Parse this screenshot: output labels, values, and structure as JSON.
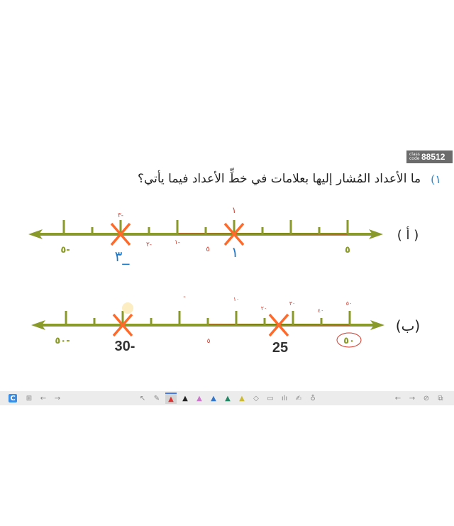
{
  "badge": {
    "label": "class code",
    "code": "88512"
  },
  "question": {
    "number": "١)",
    "text": "ما الأعداد المُشار إليها بعلامات في خطِّ الأعداد فيما يأتي؟"
  },
  "line_a": {
    "label": "( أ )",
    "printed_left": "٥-",
    "printed_right": "٥",
    "answer_x": "٣_",
    "answer_mark": "١",
    "annotations": {
      "above_x": "٣-",
      "n2": "٢-",
      "n1": "١-",
      "zero": "٥",
      "above_one": "١"
    }
  },
  "line_b": {
    "label": "(ب)",
    "printed_left": "٥٠-",
    "answer_x": "30-",
    "answer_mark": "25",
    "printed_right": "٥٠",
    "annotations": {
      "zero": "٥",
      "t10": "١٠",
      "t20": "٢٠",
      "t30": "٣٠",
      "t40": "٤٠",
      "t50": "٥٠",
      "above_minus": "-"
    }
  },
  "colors": {
    "line": "#8a9a2a",
    "cross": "#ff6a2a",
    "blue": "#1e78c8",
    "ink": "#d23a2a"
  },
  "toolbar": {
    "icons": [
      "app-logo",
      "grid",
      "back",
      "forward",
      "select",
      "laser-pen",
      "pen-red",
      "pen-black",
      "pen-pink",
      "pen-blue",
      "pen-green",
      "pen-yellow",
      "eraser",
      "whiteboard",
      "chart",
      "signature",
      "spotlight",
      "prev-page",
      "next-page",
      "hide",
      "screen-record"
    ]
  }
}
